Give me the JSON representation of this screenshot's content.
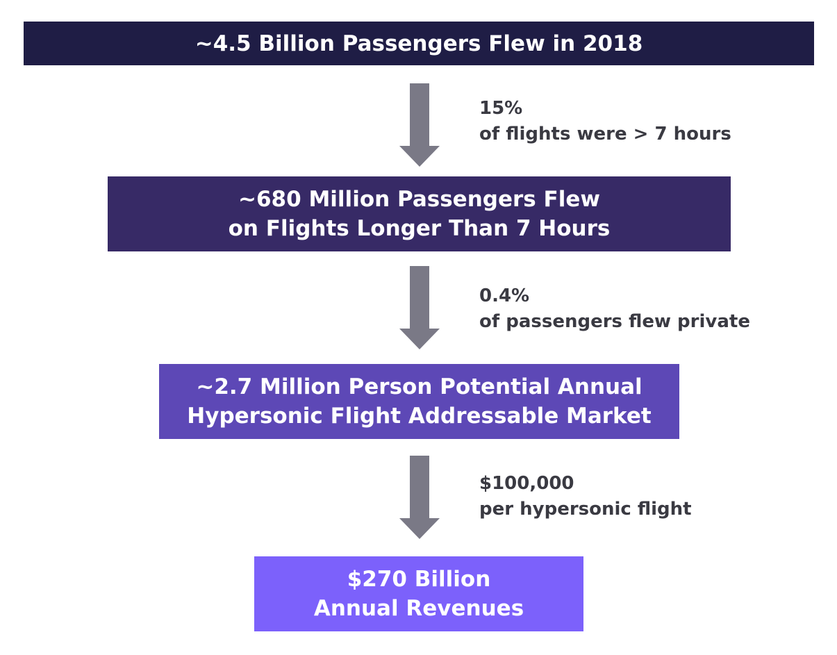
{
  "colors": {
    "box_1": "#1f1d45",
    "box_2": "#372a66",
    "box_3": "#5d48b6",
    "box_4": "#7c61fb",
    "arrow": "#7a7986",
    "annotation_text": "#3a3a42"
  },
  "stages": [
    {
      "lines": [
        "~4.5 Billion Passengers Flew in 2018"
      ]
    },
    {
      "lines": [
        "~680 Million Passengers Flew",
        "on Flights Longer Than 7 Hours"
      ]
    },
    {
      "lines": [
        "~2.7 Million Person Potential Annual",
        "Hypersonic Flight Addressable Market"
      ]
    },
    {
      "lines": [
        "$270 Billion",
        "Annual Revenues"
      ]
    }
  ],
  "transitions": [
    {
      "value": "15%",
      "description": "of flights were > 7 hours"
    },
    {
      "value": "0.4%",
      "description": "of passengers flew private"
    },
    {
      "value": "$100,000",
      "description": "per hypersonic flight"
    }
  ]
}
